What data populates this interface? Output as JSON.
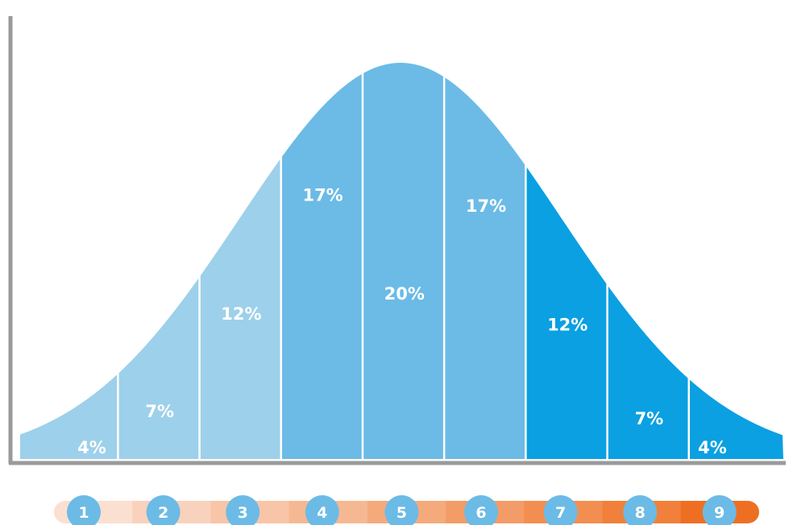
{
  "chart_data": {
    "type": "area",
    "categories": [
      "1",
      "2",
      "3",
      "4",
      "5",
      "6",
      "7",
      "8",
      "9"
    ],
    "values": [
      4,
      7,
      12,
      17,
      20,
      17,
      12,
      7,
      4
    ],
    "labels": [
      "4%",
      "7%",
      "12%",
      "17%",
      "20%",
      "17%",
      "12%",
      "7%",
      "4%"
    ],
    "title": "",
    "xlabel": "",
    "ylabel": "",
    "grid": false,
    "legend": "none"
  },
  "colors": {
    "segments": [
      "#9dd0ea",
      "#9dd0ea",
      "#9dd0ea",
      "#6bbbe6",
      "#6bbbe6",
      "#6bbbe6",
      "#0aa0e2",
      "#0aa0e2",
      "#0aa0e2"
    ],
    "axis": "#9a9a9a",
    "circle": "#6bbbe6",
    "scale_bar": [
      "#fbe0d1",
      "#f9d2bd",
      "#f8c5a8",
      "#f6b892",
      "#f5aa7c",
      "#f39c67",
      "#f28e50",
      "#f1803a",
      "#ee6f22"
    ]
  }
}
